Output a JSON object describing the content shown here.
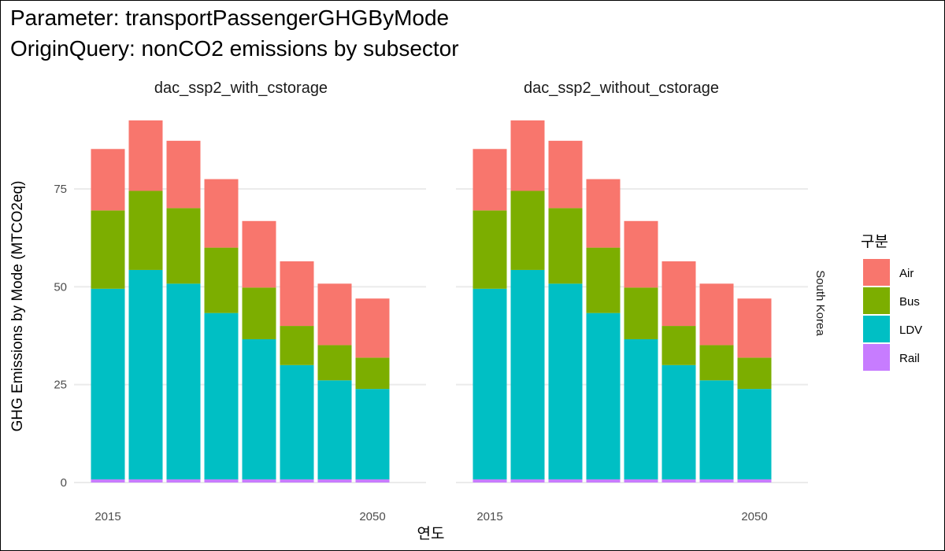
{
  "title_lines": [
    "Parameter: transportPassengerGHGByMode",
    "OriginQuery: nonCO2 emissions by subsector"
  ],
  "panel_titles": [
    "dac_ssp2_with_cstorage",
    "dac_ssp2_without_cstorage"
  ],
  "row_strip": "South Korea",
  "xlabel": "연도",
  "ylabel": "GHG Emissions by Mode (MTCO2eq)",
  "legend_title": "구분",
  "colors": {
    "Air": "#F8766D",
    "Bus": "#7CAE00",
    "LDV": "#00BFC4",
    "Rail": "#C77CFF"
  },
  "chart_data": {
    "type": "bar",
    "stacked": true,
    "categories": [
      2015,
      2020,
      2025,
      2030,
      2035,
      2040,
      2045,
      2050
    ],
    "x_tick_labels": [
      "2015",
      "2050"
    ],
    "y_ticks": [
      0,
      25,
      50,
      75
    ],
    "ylim": [
      0,
      95
    ],
    "legend_position": "right",
    "grid": "horizontal major",
    "facets": [
      {
        "name": "dac_ssp2_with_cstorage",
        "series": [
          {
            "name": "Rail",
            "values": [
              0.8,
              0.8,
              0.8,
              0.8,
              0.8,
              0.8,
              0.8,
              0.8
            ]
          },
          {
            "name": "LDV",
            "values": [
              48.7,
              53.5,
              50.0,
              42.5,
              35.8,
              29.2,
              25.3,
              23.1
            ]
          },
          {
            "name": "Bus",
            "values": [
              20.0,
              20.2,
              19.3,
              16.7,
              13.2,
              10.0,
              9.0,
              8.0
            ]
          },
          {
            "name": "Air",
            "values": [
              15.7,
              18.0,
              17.2,
              17.5,
              17.0,
              16.5,
              15.7,
              15.1
            ]
          }
        ]
      },
      {
        "name": "dac_ssp2_without_cstorage",
        "series": [
          {
            "name": "Rail",
            "values": [
              0.8,
              0.8,
              0.8,
              0.8,
              0.8,
              0.8,
              0.8,
              0.8
            ]
          },
          {
            "name": "LDV",
            "values": [
              48.7,
              53.5,
              50.0,
              42.5,
              35.8,
              29.2,
              25.3,
              23.1
            ]
          },
          {
            "name": "Bus",
            "values": [
              20.0,
              20.2,
              19.3,
              16.7,
              13.2,
              10.0,
              9.0,
              8.0
            ]
          },
          {
            "name": "Air",
            "values": [
              15.7,
              18.0,
              17.2,
              17.5,
              17.0,
              16.5,
              15.7,
              15.1
            ]
          }
        ]
      }
    ],
    "legend_order": [
      "Air",
      "Bus",
      "LDV",
      "Rail"
    ]
  }
}
